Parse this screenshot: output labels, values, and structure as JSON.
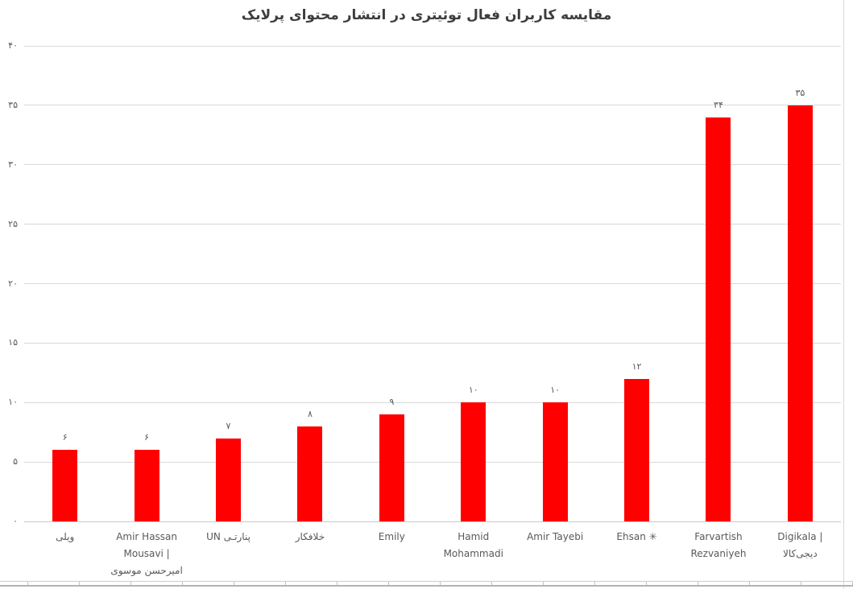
{
  "chart_data": {
    "type": "bar",
    "title": "مقایسه کاربران فعال توئیتری در انتشار محتوای پرلایک",
    "categories": [
      "ویلی",
      "Amir Hassan Mousavi | امیرحسن موسوی",
      "پنارتـی UN",
      "خلافکار",
      "Emily",
      "Hamid Mohammadi",
      "Amir Tayebi",
      "Ehsan ✳",
      "Farvartish Rezvaniyeh",
      "Digikala | دیجی‌کالا"
    ],
    "category_lines": [
      [
        "ویلی"
      ],
      [
        "Amir Hassan",
        "Mousavi |",
        "امیرحسن موسوی"
      ],
      [
        "پنارتـی UN"
      ],
      [
        "خلافکار"
      ],
      [
        "Emily"
      ],
      [
        "Hamid",
        "Mohammadi"
      ],
      [
        "Amir Tayebi"
      ],
      [
        "Ehsan ✳"
      ],
      [
        "Farvartish",
        "Rezvaniyeh"
      ],
      [
        "Digikala | دیجی‌کالا"
      ]
    ],
    "values": [
      6,
      6,
      7,
      8,
      9,
      10,
      10,
      12,
      34,
      35
    ],
    "value_labels": [
      "۶",
      "۶",
      "۷",
      "۸",
      "۹",
      "۱۰",
      "۱۰",
      "۱۲",
      "۳۴",
      "۳۵"
    ],
    "y_ticks": [
      0,
      5,
      10,
      15,
      20,
      25,
      30,
      35,
      40
    ],
    "y_tick_labels": [
      "۰",
      "۵",
      "۱۰",
      "۱۵",
      "۲۰",
      "۲۵",
      "۳۰",
      "۳۵",
      "۴۰"
    ],
    "ylim": [
      0,
      40
    ],
    "xlabel": "",
    "ylabel": "",
    "grid": true,
    "legend": false,
    "numeral_system": "persian",
    "bar_color": "#fe0000",
    "text_color": "#595959",
    "title_color": "#3d3d3d",
    "gridline_color": "#d9d9d9"
  }
}
